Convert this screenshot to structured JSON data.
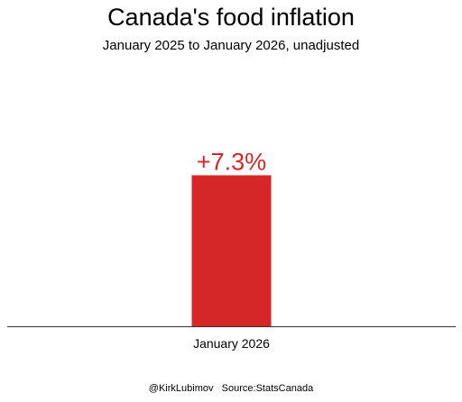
{
  "title": "Canada's food inflation",
  "subtitle": "January 2025 to January 2026, unadjusted",
  "footer": {
    "handle": "@KirkLubimov",
    "source": "Source:StatsCanada"
  },
  "colors": {
    "bar": "#d62728",
    "label": "#d62728",
    "axis": "#333333"
  },
  "chart_data": {
    "type": "bar",
    "title": "Canada's food inflation",
    "subtitle": "January 2025 to January 2026, unadjusted",
    "categories": [
      "January 2026"
    ],
    "values": [
      7.3
    ],
    "data_labels": [
      "+7.3%"
    ],
    "ylim": [
      0,
      12.2
    ],
    "grid": false,
    "legend": "none"
  }
}
